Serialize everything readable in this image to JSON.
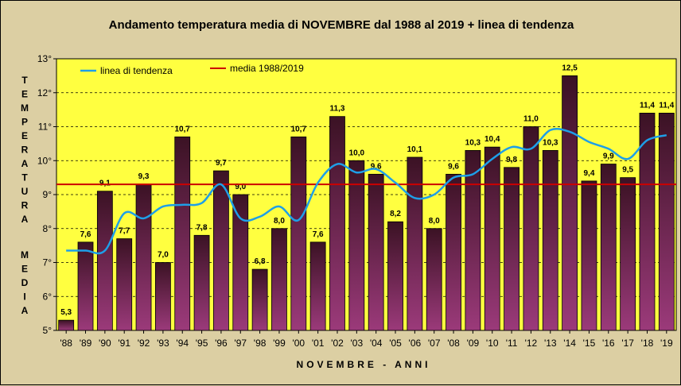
{
  "chart_data": {
    "type": "bar",
    "title": "Andamento temperatura media di NOVEMBRE dal 1988 al 2019 + linea di tendenza",
    "xlabel": "NOVEMBRE - ANNI",
    "ylabel_top": "TEMPERATURA",
    "ylabel_bottom": "MEDIA",
    "ylim": [
      5,
      13
    ],
    "yticks": [
      5,
      6,
      7,
      8,
      9,
      10,
      11,
      12,
      13
    ],
    "ytick_suffix": "°",
    "categories": [
      "'88",
      "'89",
      "'90",
      "'91",
      "'92",
      "'93",
      "'94",
      "'95",
      "'96",
      "'97",
      "'98",
      "'99",
      "'00",
      "'01",
      "'02",
      "'03",
      "'04",
      "'05",
      "'06",
      "'07",
      "'08",
      "'09",
      "'10",
      "'11",
      "'12",
      "'13",
      "'14",
      "'15",
      "'16",
      "'17",
      "'18",
      "'19"
    ],
    "values": [
      5.3,
      7.6,
      9.1,
      7.7,
      9.3,
      7.0,
      10.7,
      7.8,
      9.7,
      9.0,
      6.8,
      8.0,
      10.7,
      7.6,
      11.3,
      10.0,
      9.6,
      8.2,
      10.1,
      8.0,
      9.6,
      10.3,
      10.4,
      9.8,
      11.0,
      10.3,
      12.5,
      9.4,
      9.9,
      9.5,
      11.4,
      11.4
    ],
    "value_labels": [
      "5,3",
      "7,6",
      "9,1",
      "7,7",
      "9,3",
      "7,0",
      "10,7",
      "7,8",
      "9,7",
      "9,0",
      "6,8",
      "8,0",
      "10,7",
      "7,6",
      "11,3",
      "10,0",
      "9,6",
      "8,2",
      "10,1",
      "8,0",
      "9,6",
      "10,3",
      "10,4",
      "9,8",
      "11,0",
      "10,3",
      "12,5",
      "9,4",
      "9,9",
      "9,5",
      "11,4",
      "11,4"
    ],
    "trend": [
      7.35,
      7.35,
      7.35,
      8.45,
      8.3,
      8.65,
      8.7,
      8.75,
      9.3,
      8.3,
      8.35,
      8.65,
      8.25,
      9.35,
      9.9,
      9.65,
      9.75,
      9.35,
      8.9,
      9.0,
      9.5,
      9.6,
      10.05,
      10.4,
      10.35,
      10.9,
      10.85,
      10.55,
      10.35,
      10.05,
      10.6,
      10.75
    ],
    "mean": 9.3,
    "legend": {
      "trend_label": "linea di tendenza",
      "mean_label": "media 1988/2019",
      "placement": "top-left"
    },
    "colors": {
      "plot_bg": "#ffff40",
      "trend": "#1e9fe8",
      "mean": "#cc0000",
      "bar_top": "#3b1224",
      "bar_bottom": "#9b3a7a",
      "outer_bg": "#dccfa3"
    }
  }
}
